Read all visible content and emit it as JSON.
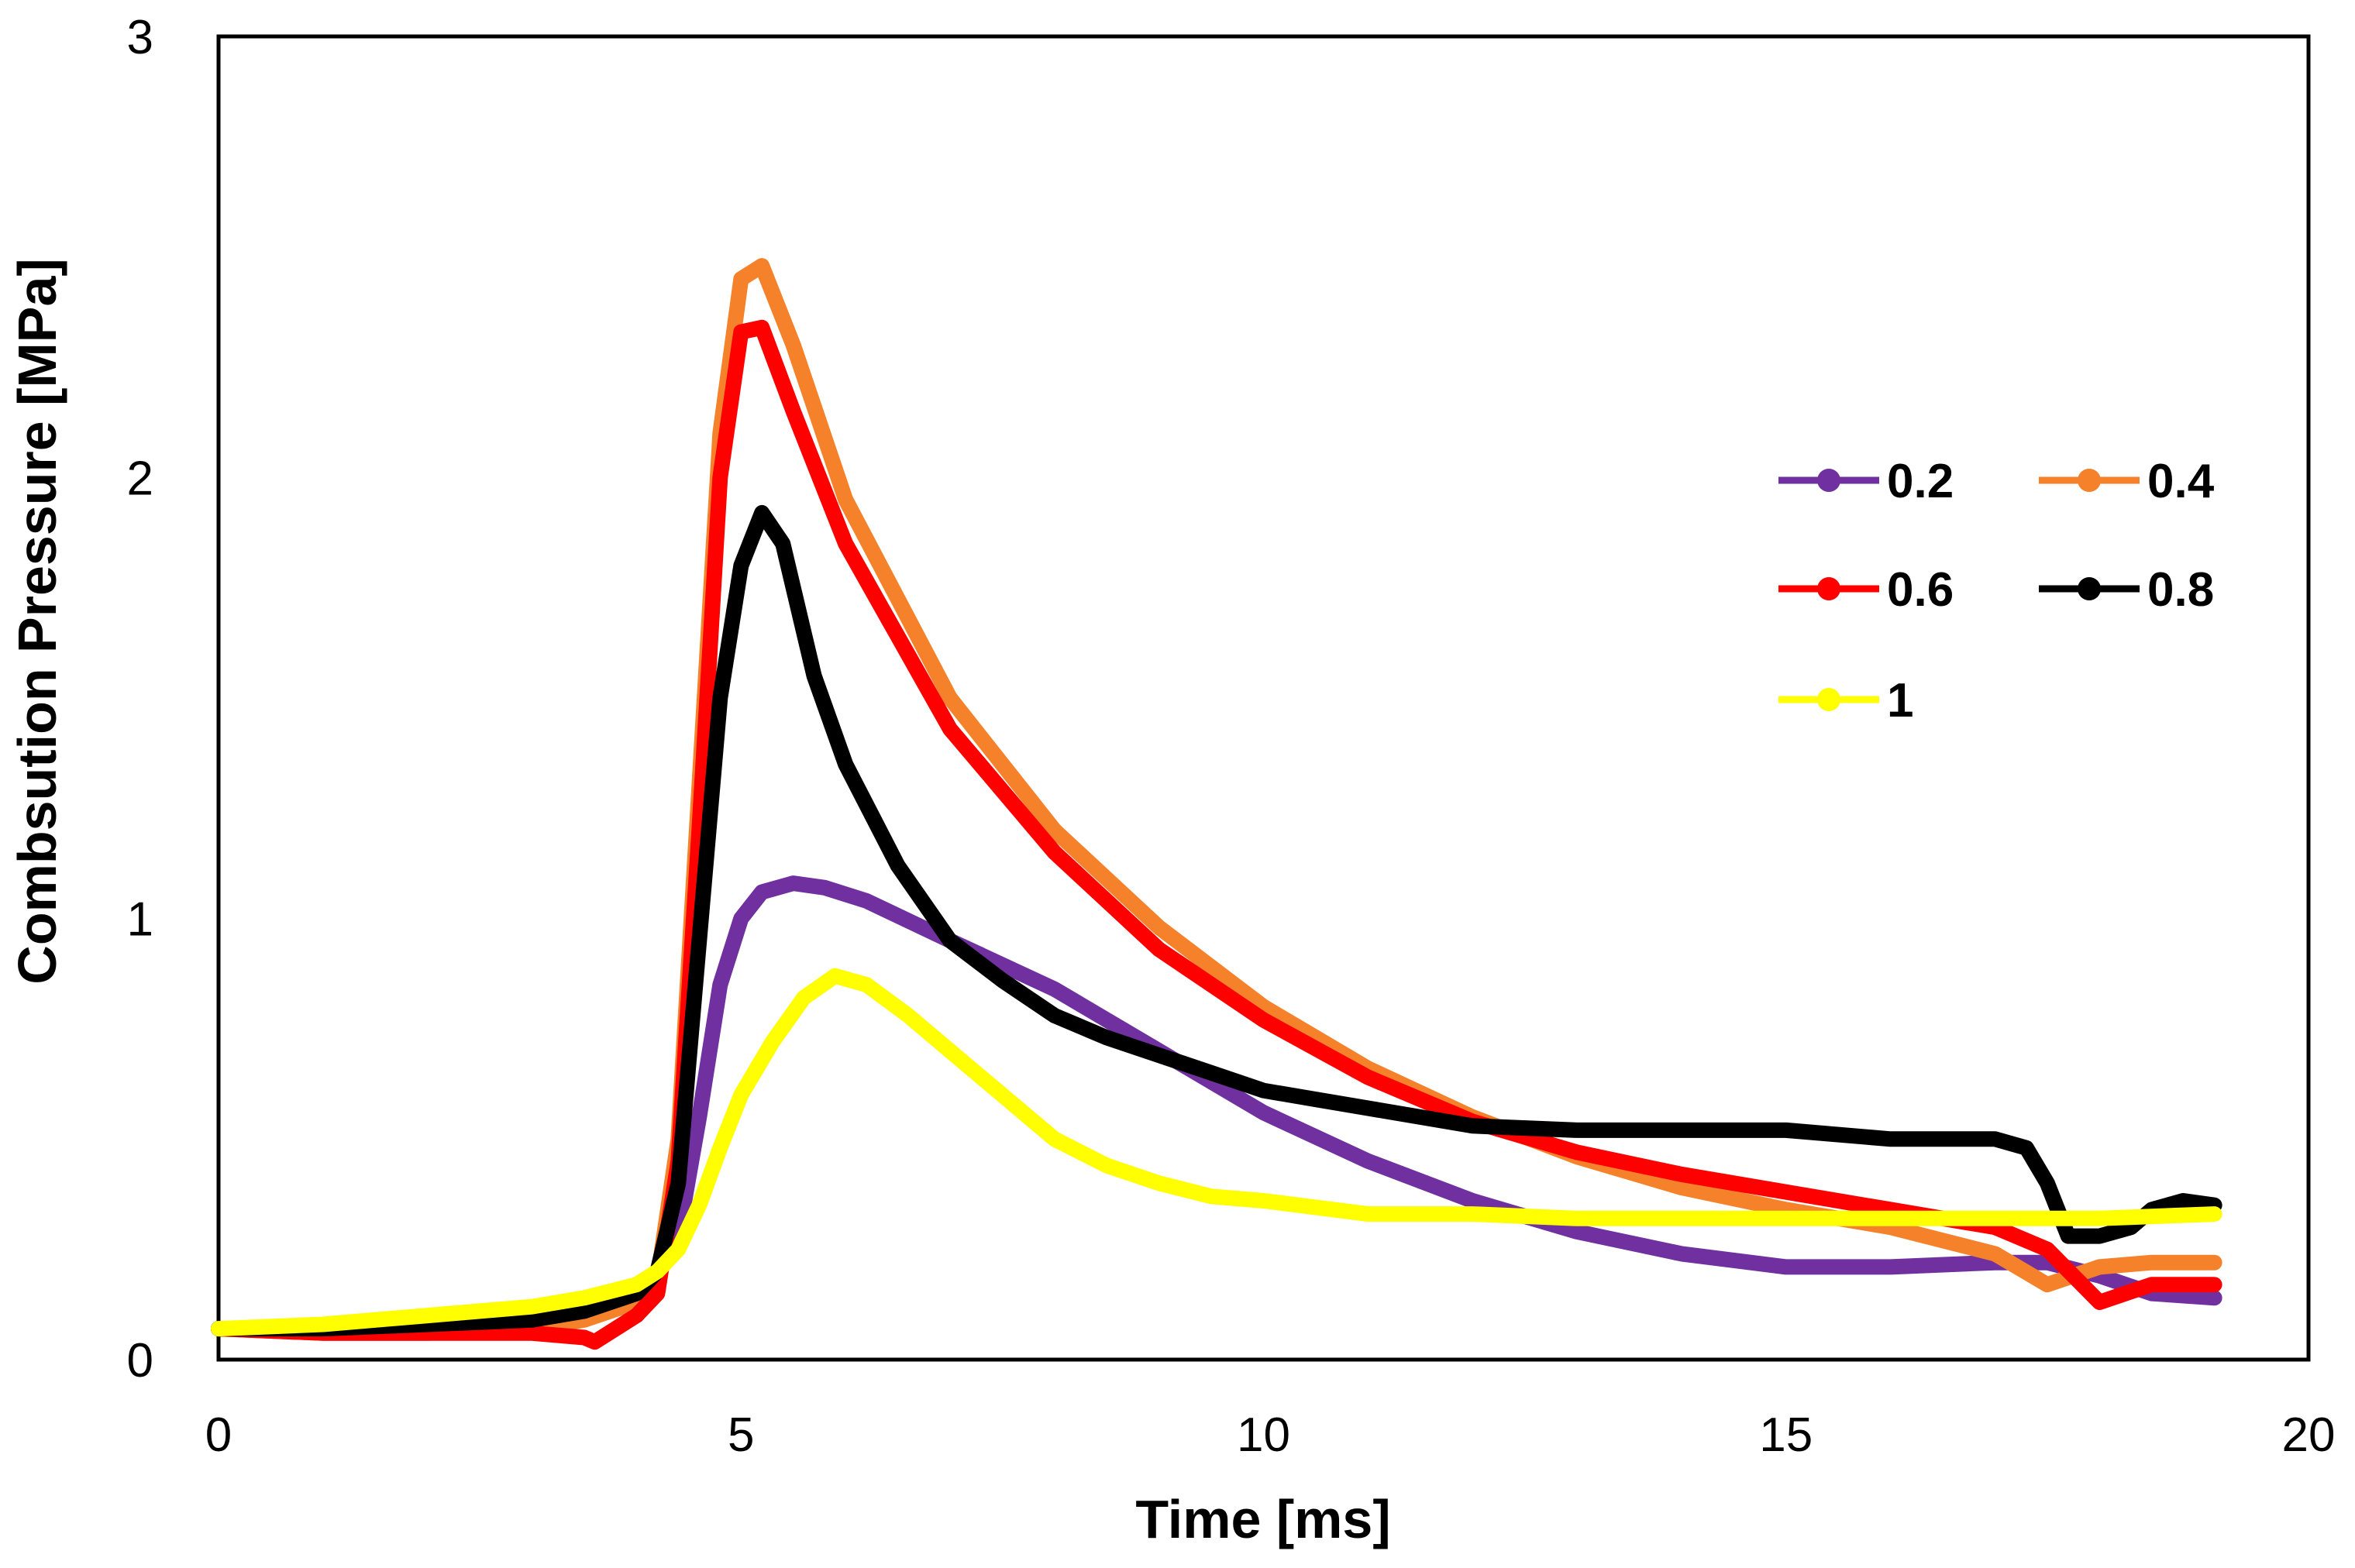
{
  "chart_data": {
    "type": "line",
    "title": "",
    "xlabel": "Time [ms]",
    "ylabel": "Combsution Pressure [MPa]",
    "xlim": [
      0,
      20
    ],
    "ylim": [
      0,
      3
    ],
    "xticks": [
      "0",
      "5",
      "10",
      "15",
      "20"
    ],
    "yticks": [
      "0",
      "1",
      "2",
      "3"
    ],
    "grid": false,
    "legend_position": "right",
    "series": [
      {
        "name": "0.2",
        "color": "#7030A0",
        "x": [
          0,
          1,
          2,
          3,
          3.5,
          4,
          4.2,
          4.4,
          4.6,
          4.8,
          5.0,
          5.2,
          5.5,
          5.8,
          6.2,
          7,
          8,
          9,
          10,
          11,
          12,
          13,
          14,
          15,
          16,
          17,
          17.5,
          18,
          18.5,
          19.1
        ],
        "values": [
          0.07,
          0.07,
          0.08,
          0.1,
          0.12,
          0.16,
          0.2,
          0.28,
          0.55,
          0.85,
          1.0,
          1.06,
          1.08,
          1.07,
          1.04,
          0.95,
          0.84,
          0.7,
          0.56,
          0.45,
          0.36,
          0.29,
          0.24,
          0.21,
          0.21,
          0.22,
          0.22,
          0.19,
          0.15,
          0.14
        ]
      },
      {
        "name": "0.4",
        "color": "#F5822A",
        "x": [
          0,
          1,
          2,
          3,
          3.5,
          4,
          4.2,
          4.4,
          4.6,
          4.8,
          5.0,
          5.2,
          5.5,
          6,
          7,
          8,
          9,
          10,
          11,
          12,
          13,
          14,
          15,
          16,
          17,
          17.5,
          18,
          18.5,
          19.1
        ],
        "values": [
          0.07,
          0.06,
          0.06,
          0.07,
          0.09,
          0.13,
          0.18,
          0.5,
          1.3,
          2.1,
          2.45,
          2.48,
          2.3,
          1.95,
          1.5,
          1.2,
          0.98,
          0.8,
          0.66,
          0.55,
          0.46,
          0.39,
          0.34,
          0.3,
          0.24,
          0.17,
          0.21,
          0.22,
          0.22
        ]
      },
      {
        "name": "0.6",
        "color": "#FF0000",
        "x": [
          0,
          1,
          2,
          3,
          3.5,
          3.6,
          4,
          4.2,
          4.4,
          4.6,
          4.8,
          5.0,
          5.2,
          5.5,
          6,
          7,
          8,
          9,
          10,
          11,
          12,
          13,
          14,
          15,
          16,
          17,
          17.5,
          18,
          18.5,
          19.1
        ],
        "values": [
          0.07,
          0.06,
          0.06,
          0.06,
          0.05,
          0.04,
          0.1,
          0.15,
          0.45,
          1.2,
          2.0,
          2.33,
          2.34,
          2.15,
          1.85,
          1.43,
          1.15,
          0.93,
          0.77,
          0.64,
          0.54,
          0.47,
          0.42,
          0.38,
          0.34,
          0.3,
          0.25,
          0.13,
          0.17,
          0.17
        ]
      },
      {
        "name": "0.8",
        "color": "#000000",
        "x": [
          0,
          1,
          2,
          3,
          3.5,
          4,
          4.2,
          4.4,
          4.6,
          4.8,
          5.0,
          5.2,
          5.4,
          5.7,
          6,
          6.5,
          7,
          7.5,
          8,
          8.5,
          9,
          9.5,
          10,
          10.5,
          11,
          12,
          13,
          14,
          15,
          16,
          17,
          17.3,
          17.5,
          17.7,
          18,
          18.3,
          18.5,
          18.8,
          19.1
        ],
        "values": [
          0.07,
          0.07,
          0.08,
          0.09,
          0.11,
          0.15,
          0.2,
          0.4,
          0.95,
          1.5,
          1.8,
          1.92,
          1.85,
          1.55,
          1.35,
          1.12,
          0.95,
          0.86,
          0.78,
          0.73,
          0.69,
          0.65,
          0.61,
          0.59,
          0.57,
          0.53,
          0.52,
          0.52,
          0.52,
          0.5,
          0.5,
          0.48,
          0.4,
          0.28,
          0.28,
          0.3,
          0.34,
          0.36,
          0.35
        ]
      },
      {
        "name": "1",
        "color": "#FFFF00",
        "x": [
          0,
          1,
          2,
          3,
          3.5,
          4,
          4.2,
          4.4,
          4.6,
          4.8,
          5.0,
          5.3,
          5.6,
          5.9,
          6.2,
          6.6,
          7,
          7.5,
          8,
          8.5,
          9,
          9.5,
          10,
          11,
          12,
          13,
          14,
          15,
          16,
          17,
          18,
          19.1
        ],
        "values": [
          0.07,
          0.08,
          0.1,
          0.12,
          0.14,
          0.17,
          0.2,
          0.25,
          0.35,
          0.48,
          0.6,
          0.72,
          0.82,
          0.87,
          0.85,
          0.78,
          0.7,
          0.6,
          0.5,
          0.44,
          0.4,
          0.37,
          0.36,
          0.33,
          0.33,
          0.32,
          0.32,
          0.32,
          0.32,
          0.32,
          0.32,
          0.33
        ]
      }
    ]
  }
}
